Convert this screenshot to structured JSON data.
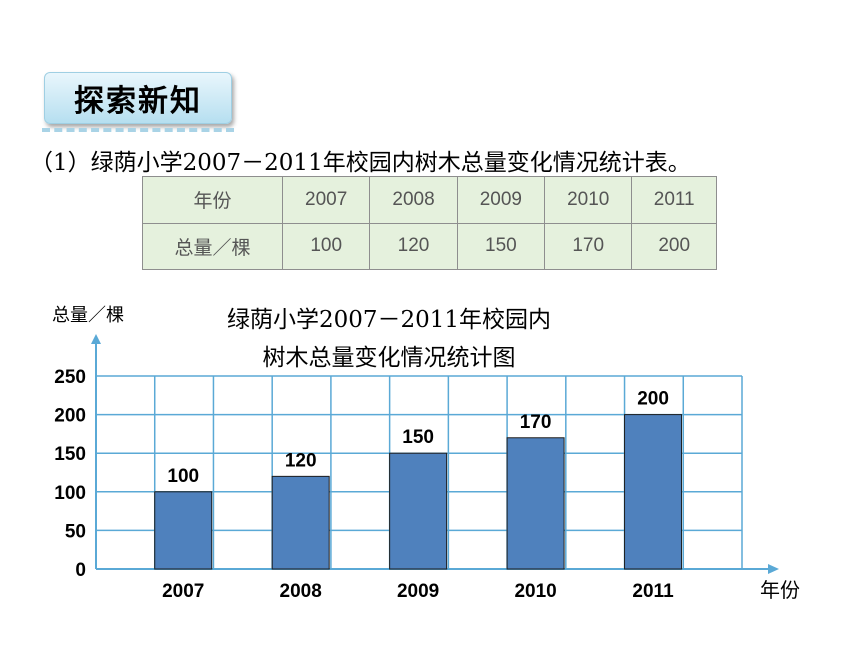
{
  "section_tag": "探索新知",
  "caption": "（1）绿荫小学2007－2011年校园内树木总量变化情况统计表。",
  "table": {
    "row_headers": [
      "年份",
      "总量／棵"
    ],
    "years": [
      "2007",
      "2008",
      "2009",
      "2010",
      "2011"
    ],
    "totals": [
      "100",
      "120",
      "150",
      "170",
      "200"
    ]
  },
  "chart_data": {
    "type": "bar",
    "title_line1": "绿荫小学2007－2011年校园内",
    "title_line2": "树木总量变化情况统计图",
    "ylabel": "总量／棵",
    "xlabel": "年份",
    "categories": [
      "2007",
      "2008",
      "2009",
      "2010",
      "2011"
    ],
    "values": [
      100,
      120,
      150,
      170,
      200
    ],
    "ylim": [
      0,
      250
    ],
    "yticks": [
      0,
      50,
      100,
      150,
      200,
      250
    ],
    "grid": true,
    "bar_color": "#4f81bd",
    "grid_color": "#5aa9d6",
    "axis_color": "#5aa9d6"
  }
}
